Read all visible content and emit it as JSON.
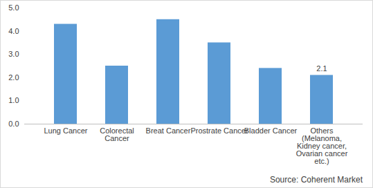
{
  "chart_data": {
    "type": "bar",
    "categories": [
      "Lung Cancer",
      "Colorectal Cancer",
      "Breat Cancer",
      "Prostrate Cancer",
      "Bladder Cancer",
      "Others (Melanoma, Kidney cancer, Ovarian cancer etc.)"
    ],
    "values": [
      4.3,
      2.5,
      4.5,
      3.5,
      2.4,
      2.1
    ],
    "data_labels": true,
    "value_labels": [
      null,
      null,
      null,
      null,
      null,
      "2.1"
    ],
    "color": "#5b9bd5",
    "ylim": [
      0,
      5
    ],
    "yticks": [
      0,
      1,
      2,
      3,
      4,
      5
    ],
    "grid": false,
    "caption": "Source: Coherent Market"
  }
}
